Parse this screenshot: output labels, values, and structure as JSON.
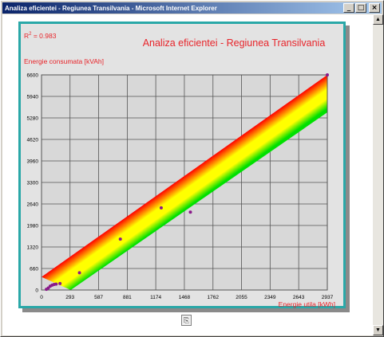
{
  "window": {
    "title": "Analiza eficientei - Regiunea Transilvania - Microsoft Internet Explorer",
    "btn_minimize": "_",
    "btn_maximize": "□",
    "btn_close": "×"
  },
  "scrollbar": {
    "up": "▲",
    "down": "▼"
  },
  "chart_data": {
    "type": "scatter",
    "title": "Analiza eficientei - Regiunea Transilvania",
    "r2_label": "R",
    "r2_sup": "2",
    "r2_value": " = 0.983",
    "ylabel": "Energie consumata [kVAh]",
    "xlabel": "Energie utila [kWh]",
    "xlim": [
      0,
      2937
    ],
    "ylim": [
      0,
      6600
    ],
    "xticks": [
      0,
      293,
      587,
      881,
      1174,
      1468,
      1762,
      2055,
      2349,
      2643,
      2937
    ],
    "yticks": [
      0,
      660,
      1320,
      1980,
      2640,
      3300,
      3960,
      4620,
      5280,
      5940,
      6600
    ],
    "band": {
      "upper": [
        [
          0,
          400
        ],
        [
          2937,
          6600
        ]
      ],
      "lower": [
        [
          300,
          0
        ],
        [
          2937,
          5450
        ]
      ]
    },
    "points": [
      [
        50,
        20
      ],
      [
        70,
        60
      ],
      [
        90,
        120
      ],
      [
        110,
        150
      ],
      [
        130,
        170
      ],
      [
        150,
        180
      ],
      [
        190,
        200
      ],
      [
        390,
        530
      ],
      [
        810,
        1560
      ],
      [
        1230,
        2520
      ],
      [
        1530,
        2390
      ],
      [
        2937,
        6600
      ]
    ],
    "colors": {
      "frame": "#2aa8a8",
      "title": "#e8242a",
      "grid": "#555555",
      "plot_bg": "#d8d8d8",
      "band_top": "#ff0000",
      "band_mid": "#ffff00",
      "band_bottom": "#00e000",
      "point": "#8a1a8a"
    }
  }
}
